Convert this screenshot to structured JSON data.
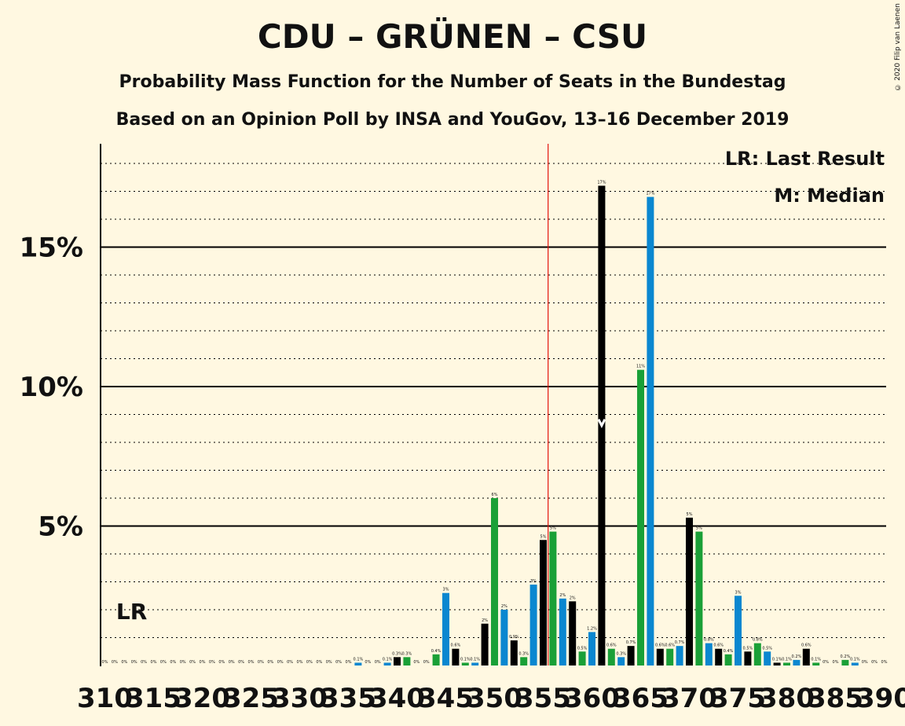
{
  "title": "CDU – GRÜNEN – CSU",
  "subtitle": "Probability Mass Function for the Number of Seats in the Bundestag",
  "subtitle2": "Based on an Opinion Poll by INSA and YouGov, 13–16 December 2019",
  "copyright": "© 2020 Filip van Laenen",
  "legend": {
    "lr": "LR: Last Result",
    "median": "M: Median"
  },
  "markers": {
    "lr_label": "LR",
    "median_label": "M"
  },
  "colors": {
    "black": "#000000",
    "green": "#1aa037",
    "blue": "#0a87d0",
    "red": "#e3120b",
    "bg": "#fff8e1"
  },
  "chart_data": {
    "type": "bar",
    "ylim": [
      0,
      18.7
    ],
    "yticks": [
      {
        "value": 5,
        "label": "5%"
      },
      {
        "value": 10,
        "label": "10%"
      },
      {
        "value": 15,
        "label": "15%"
      }
    ],
    "grid": "dotted every 1%",
    "majority_line_x": 355.5,
    "median_x": 361,
    "lr_x": 311,
    "xtick_labels": [
      "310",
      "315",
      "320",
      "325",
      "330",
      "335",
      "340",
      "345",
      "350",
      "355",
      "360",
      "365",
      "370",
      "375",
      "380",
      "385",
      "390"
    ],
    "color_cycle": [
      "black",
      "green",
      "blue"
    ],
    "x_start": 310,
    "values": [
      0,
      0,
      0,
      0,
      0,
      0,
      0,
      0,
      0,
      0,
      0,
      0,
      0,
      0,
      0,
      0,
      0,
      0,
      0,
      0,
      0,
      0,
      0,
      0,
      0,
      0,
      0.1,
      0,
      0,
      0.1,
      0.3,
      0.3,
      0,
      0,
      0.4,
      2.6,
      0.6,
      0.1,
      0.1,
      1.5,
      6.0,
      2.0,
      0.9,
      0.3,
      2.9,
      4.5,
      4.8,
      2.4,
      2.3,
      0.5,
      1.2,
      17.2,
      0.6,
      0.3,
      0.7,
      10.6,
      16.8,
      0.6,
      0.6,
      0.7,
      5.3,
      4.8,
      0.8,
      0.6,
      0.4,
      2.5,
      0.5,
      0.8,
      0.5,
      0.1,
      0.1,
      0.2,
      0.6,
      0.1,
      0,
      0,
      0.2,
      0.1,
      0,
      0,
      0
    ],
    "data_labels": [
      "0%",
      "0%",
      "0%",
      "0%",
      "0%",
      "0%",
      "0%",
      "0%",
      "0%",
      "0%",
      "0%",
      "0%",
      "0%",
      "0%",
      "0%",
      "0%",
      "0%",
      "0%",
      "0%",
      "0%",
      "0%",
      "0%",
      "0%",
      "0%",
      "0%",
      "0%",
      "0.1%",
      "0%",
      "0%",
      "0.1%",
      "0.3%",
      "0.3%",
      "0%",
      "0%",
      "0.4%",
      "3%",
      "0.6%",
      "0.1%",
      "0.1%",
      "2%",
      "6%",
      "2%",
      "0.9%",
      "0.3%",
      "3%",
      "5%",
      "5%",
      "2%",
      "2%",
      "0.5%",
      "1.2%",
      "17%",
      "0.6%",
      "0.3%",
      "0.7%",
      "11%",
      "17%",
      "0.6%",
      "0.6%",
      "0.7%",
      "5%",
      "5%",
      "0.8%",
      "0.6%",
      "0.4%",
      "3%",
      "0.5%",
      "0.8%",
      "0.5%",
      "0.1%",
      "0.1%",
      "0.2%",
      "0.6%",
      "0.1%",
      "0%",
      "0%",
      "0.2%",
      "0.1%",
      "0%",
      "0%",
      "0%"
    ]
  }
}
